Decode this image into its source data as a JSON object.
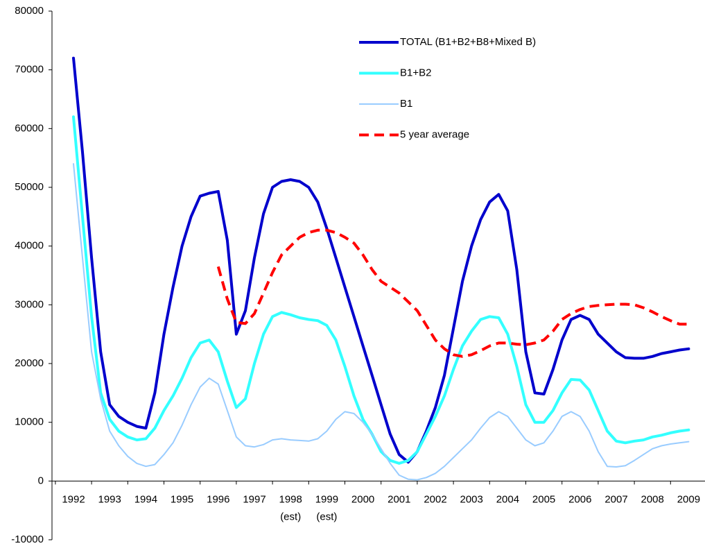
{
  "chart_data": {
    "type": "line",
    "x": [
      1992,
      1992.25,
      1992.5,
      1992.75,
      1993,
      1993.25,
      1993.5,
      1993.75,
      1994,
      1994.25,
      1994.5,
      1994.75,
      1995,
      1995.25,
      1995.5,
      1995.75,
      1996,
      1996.25,
      1996.5,
      1996.75,
      1997,
      1997.25,
      1997.5,
      1997.75,
      1998,
      1998.25,
      1998.5,
      1998.75,
      1999,
      1999.25,
      1999.5,
      1999.75,
      2000,
      2000.25,
      2000.5,
      2000.75,
      2001,
      2001.25,
      2001.5,
      2001.75,
      2002,
      2002.25,
      2002.5,
      2002.75,
      2003,
      2003.25,
      2003.5,
      2003.75,
      2004,
      2004.25,
      2004.5,
      2004.75,
      2005,
      2005.25,
      2005.5,
      2005.75,
      2006,
      2006.25,
      2006.5,
      2006.75,
      2007,
      2007.25,
      2007.5,
      2007.75,
      2008,
      2008.25,
      2008.5,
      2008.75,
      2009
    ],
    "series": [
      {
        "name": "TOTAL (B1+B2+B8+Mixed B)",
        "color": "#0000cc",
        "width": 4,
        "dashed": false,
        "values": [
          72000,
          56000,
          38000,
          22000,
          13000,
          11000,
          10000,
          9300,
          9000,
          15000,
          25000,
          33000,
          40000,
          45000,
          48500,
          49000,
          49300,
          41000,
          25000,
          29000,
          38000,
          45500,
          50000,
          51000,
          51300,
          51000,
          50000,
          47500,
          43000,
          38000,
          33000,
          28000,
          23000,
          18000,
          13000,
          8000,
          4500,
          3200,
          5000,
          8500,
          12500,
          18000,
          26000,
          34000,
          40000,
          44500,
          47500,
          48800,
          46000,
          36000,
          22000,
          15000,
          14800,
          19000,
          24000,
          27500,
          28200,
          27500,
          25000,
          23500,
          22000,
          21000,
          20900,
          20900,
          21200,
          21700,
          22000,
          22300,
          22500
        ]
      },
      {
        "name": "B1+B2",
        "color": "#33ffff",
        "width": 4,
        "dashed": false,
        "values": [
          62000,
          45000,
          28000,
          15000,
          10500,
          8500,
          7500,
          7000,
          7200,
          9000,
          12000,
          14500,
          17500,
          21000,
          23500,
          24000,
          22000,
          17000,
          12500,
          14000,
          20000,
          25000,
          28000,
          28700,
          28300,
          27800,
          27500,
          27300,
          26500,
          24000,
          19500,
          14500,
          10500,
          8000,
          5000,
          3500,
          3000,
          3500,
          5000,
          8000,
          11000,
          14500,
          19000,
          23000,
          25500,
          27500,
          28000,
          27800,
          25000,
          19500,
          13000,
          10000,
          10000,
          12000,
          15000,
          17300,
          17200,
          15500,
          12000,
          8500,
          6800,
          6500,
          6800,
          7000,
          7500,
          7800,
          8200,
          8500,
          8700
        ]
      },
      {
        "name": "B1",
        "color": "#99ccff",
        "width": 2,
        "dashed": false,
        "values": [
          54000,
          38000,
          22000,
          14000,
          8500,
          6000,
          4200,
          3000,
          2500,
          2800,
          4500,
          6500,
          9500,
          13000,
          16000,
          17500,
          16500,
          12000,
          7500,
          6000,
          5800,
          6200,
          7000,
          7200,
          7000,
          6900,
          6800,
          7200,
          8500,
          10500,
          11800,
          11500,
          10000,
          8000,
          5500,
          3000,
          1000,
          300,
          200,
          600,
          1300,
          2500,
          4000,
          5500,
          7000,
          9000,
          10800,
          11800,
          11000,
          9000,
          7000,
          6000,
          6500,
          8500,
          11000,
          11800,
          11000,
          8500,
          5000,
          2500,
          2400,
          2600,
          3500,
          4500,
          5500,
          6000,
          6300,
          6500,
          6700
        ]
      },
      {
        "name": "5 year average",
        "color": "#ff0000",
        "width": 4,
        "dashed": true,
        "values": [
          null,
          null,
          null,
          null,
          null,
          null,
          null,
          null,
          null,
          null,
          null,
          null,
          null,
          null,
          null,
          null,
          36500,
          31000,
          27000,
          26800,
          28500,
          32000,
          35500,
          38500,
          40000,
          41500,
          42300,
          42700,
          42700,
          42300,
          41500,
          40500,
          38500,
          36000,
          34000,
          33000,
          32000,
          30500,
          29000,
          26500,
          24000,
          22500,
          21500,
          21200,
          21500,
          22200,
          23000,
          23500,
          23500,
          23300,
          23200,
          23500,
          24000,
          25500,
          27500,
          28500,
          29200,
          29700,
          29900,
          30000,
          30100,
          30100,
          30000,
          29500,
          28800,
          28000,
          27300,
          26700,
          26700
        ]
      }
    ],
    "xlim": [
      1991.4,
      2009.5
    ],
    "xticks": [
      1992,
      1993,
      1994,
      1995,
      1996,
      1997,
      1998,
      1999,
      2000,
      2001,
      2002,
      2003,
      2004,
      2005,
      2006,
      2007,
      2008,
      2009
    ],
    "ylim": [
      -10000,
      80000
    ],
    "yticks": [
      -10000,
      0,
      10000,
      20000,
      30000,
      40000,
      50000,
      60000,
      70000,
      80000
    ],
    "annotations": [
      {
        "text": "(est)",
        "x": 1998
      },
      {
        "text": "(est)",
        "x": 1999
      }
    ],
    "legend": "top-right",
    "grid": false
  }
}
